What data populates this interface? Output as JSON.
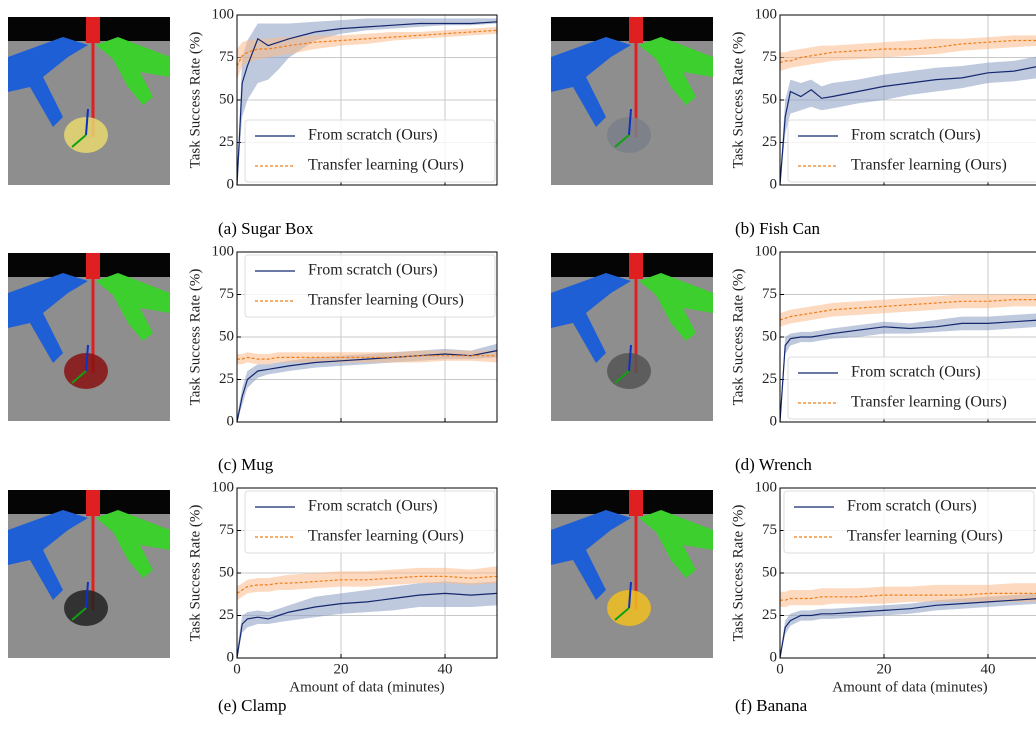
{
  "chart_data": [
    {
      "type": "line",
      "caption": "(a) Sugar Box",
      "ylabel": "Task Success Rate (%)",
      "xlim": [
        0,
        50
      ],
      "ylim": [
        0,
        100
      ],
      "xticks": [
        0,
        20,
        40
      ],
      "yticks": [
        0,
        25,
        50,
        75,
        100
      ],
      "xtick_labels": false,
      "grid": true,
      "legend": "lower right",
      "x": [
        0,
        1,
        2,
        4,
        6,
        8,
        10,
        15,
        20,
        25,
        30,
        35,
        40,
        45,
        50
      ],
      "series": [
        {
          "name": "From scratch (Ours)",
          "color": "#14286e",
          "band_color": "#8b9dc3",
          "values": [
            0,
            60,
            70,
            86,
            82,
            84,
            86,
            90,
            92,
            93,
            94,
            95,
            95,
            95,
            96
          ],
          "lower": [
            0,
            40,
            50,
            60,
            62,
            68,
            75,
            85,
            89,
            91,
            92,
            93,
            94,
            94,
            95
          ],
          "upper": [
            5,
            75,
            85,
            95,
            95,
            95,
            95,
            96,
            97,
            98,
            98,
            98,
            98,
            98,
            98
          ]
        },
        {
          "name": "Transfer learning (Ours)",
          "color": "#f07f1a",
          "band_color": "#f9b98a",
          "dashed": true,
          "values": [
            70,
            76,
            78,
            80,
            80,
            81,
            82,
            84,
            85,
            86,
            87,
            88,
            89,
            90,
            91
          ],
          "lower": [
            62,
            70,
            72,
            74,
            75,
            76,
            77,
            80,
            82,
            83,
            85,
            86,
            87,
            88,
            89
          ],
          "upper": [
            80,
            84,
            85,
            86,
            86,
            87,
            87,
            88,
            88,
            89,
            90,
            90,
            91,
            92,
            93
          ]
        }
      ]
    },
    {
      "type": "line",
      "caption": "(b) Fish Can",
      "ylabel": "Task Success Rate (%)",
      "xlim": [
        0,
        50
      ],
      "ylim": [
        0,
        100
      ],
      "xticks": [
        0,
        20,
        40
      ],
      "yticks": [
        0,
        25,
        50,
        75,
        100
      ],
      "xtick_labels": false,
      "grid": true,
      "legend": "lower right",
      "x": [
        0,
        1,
        2,
        4,
        6,
        8,
        10,
        15,
        20,
        25,
        30,
        35,
        40,
        45,
        50
      ],
      "series": [
        {
          "name": "From scratch (Ours)",
          "color": "#14286e",
          "band_color": "#8b9dc3",
          "values": [
            0,
            40,
            55,
            52,
            56,
            51,
            52,
            55,
            58,
            60,
            62,
            63,
            66,
            67,
            70
          ],
          "lower": [
            0,
            30,
            42,
            44,
            46,
            44,
            45,
            48,
            50,
            53,
            55,
            57,
            60,
            61,
            63
          ],
          "upper": [
            5,
            50,
            62,
            60,
            62,
            58,
            60,
            62,
            65,
            67,
            69,
            70,
            72,
            73,
            76
          ]
        },
        {
          "name": "Transfer learning (Ours)",
          "color": "#f07f1a",
          "band_color": "#f9b98a",
          "dashed": true,
          "values": [
            72,
            73,
            73,
            75,
            76,
            77,
            78,
            79,
            80,
            80,
            81,
            83,
            84,
            85,
            85
          ],
          "lower": [
            67,
            68,
            69,
            70,
            71,
            72,
            73,
            74,
            75,
            76,
            77,
            79,
            80,
            81,
            82
          ],
          "upper": [
            78,
            78,
            79,
            80,
            81,
            82,
            82,
            83,
            84,
            85,
            86,
            86,
            87,
            88,
            88
          ]
        }
      ]
    },
    {
      "type": "line",
      "caption": "(c) Mug",
      "ylabel": "Task Success Rate (%)",
      "xlim": [
        0,
        50
      ],
      "ylim": [
        0,
        100
      ],
      "xticks": [
        0,
        20,
        40
      ],
      "yticks": [
        0,
        25,
        50,
        75,
        100
      ],
      "xtick_labels": false,
      "grid": true,
      "legend": "upper right",
      "x": [
        0,
        1,
        2,
        4,
        6,
        8,
        10,
        15,
        20,
        25,
        30,
        35,
        40,
        45,
        50
      ],
      "series": [
        {
          "name": "From scratch (Ours)",
          "color": "#14286e",
          "band_color": "#8b9dc3",
          "values": [
            0,
            15,
            25,
            30,
            31,
            32,
            33,
            35,
            36,
            37,
            38,
            39,
            40,
            39,
            42
          ],
          "lower": [
            0,
            10,
            20,
            26,
            28,
            29,
            30,
            32,
            33,
            34,
            35,
            36,
            37,
            37,
            38
          ],
          "upper": [
            3,
            20,
            30,
            34,
            34,
            35,
            36,
            38,
            39,
            40,
            41,
            42,
            43,
            42,
            46
          ]
        },
        {
          "name": "Transfer learning (Ours)",
          "color": "#f07f1a",
          "band_color": "#f9b98a",
          "dashed": true,
          "values": [
            37,
            37,
            38,
            37,
            37,
            38,
            38,
            38,
            38,
            38,
            38,
            39,
            39,
            39,
            39
          ],
          "lower": [
            34,
            34,
            35,
            34,
            34,
            35,
            35,
            35,
            35,
            35,
            35,
            35,
            36,
            36,
            35
          ],
          "upper": [
            40,
            40,
            41,
            40,
            40,
            41,
            41,
            41,
            41,
            41,
            41,
            42,
            42,
            42,
            42
          ]
        }
      ]
    },
    {
      "type": "line",
      "caption": "(d) Wrench",
      "ylabel": "Task Success Rate (%)",
      "xlim": [
        0,
        50
      ],
      "ylim": [
        0,
        100
      ],
      "xticks": [
        0,
        20,
        40
      ],
      "yticks": [
        0,
        25,
        50,
        75,
        100
      ],
      "xtick_labels": false,
      "grid": true,
      "legend": "lower right",
      "x": [
        0,
        1,
        2,
        4,
        6,
        8,
        10,
        15,
        20,
        25,
        30,
        35,
        40,
        45,
        50
      ],
      "series": [
        {
          "name": "From scratch (Ours)",
          "color": "#14286e",
          "band_color": "#8b9dc3",
          "values": [
            0,
            45,
            49,
            50,
            50,
            51,
            52,
            54,
            56,
            55,
            56,
            58,
            58,
            59,
            60
          ],
          "lower": [
            0,
            40,
            45,
            47,
            47,
            48,
            49,
            50,
            52,
            52,
            53,
            54,
            54,
            55,
            56
          ],
          "upper": [
            5,
            50,
            52,
            53,
            53,
            54,
            55,
            57,
            59,
            58,
            60,
            62,
            62,
            63,
            64
          ]
        },
        {
          "name": "Transfer learning (Ours)",
          "color": "#f07f1a",
          "band_color": "#f9b98a",
          "dashed": true,
          "values": [
            60,
            61,
            62,
            63,
            64,
            65,
            66,
            67,
            68,
            69,
            70,
            71,
            71,
            72,
            72
          ],
          "lower": [
            56,
            57,
            58,
            59,
            60,
            61,
            62,
            63,
            64,
            65,
            66,
            67,
            67,
            68,
            68
          ],
          "upper": [
            64,
            65,
            66,
            67,
            68,
            69,
            70,
            71,
            72,
            73,
            74,
            75,
            75,
            75,
            75
          ]
        }
      ]
    },
    {
      "type": "line",
      "caption": "(e) Clamp",
      "ylabel": "Task Success Rate (%)",
      "xlabel": "Amount of data (minutes)",
      "xlim": [
        0,
        50
      ],
      "ylim": [
        0,
        100
      ],
      "xticks": [
        0,
        20,
        40
      ],
      "yticks": [
        0,
        25,
        50,
        75,
        100
      ],
      "xtick_labels": true,
      "grid": true,
      "legend": "upper right",
      "x": [
        0,
        1,
        2,
        4,
        6,
        8,
        10,
        15,
        20,
        25,
        30,
        35,
        40,
        45,
        50
      ],
      "series": [
        {
          "name": "From scratch (Ours)",
          "color": "#14286e",
          "band_color": "#8b9dc3",
          "values": [
            0,
            20,
            23,
            24,
            23,
            25,
            27,
            30,
            32,
            33,
            35,
            37,
            38,
            37,
            38
          ],
          "lower": [
            0,
            15,
            18,
            20,
            20,
            21,
            22,
            24,
            26,
            27,
            28,
            30,
            30,
            30,
            31
          ],
          "upper": [
            5,
            25,
            27,
            28,
            27,
            29,
            31,
            36,
            38,
            40,
            42,
            44,
            45,
            44,
            45
          ]
        },
        {
          "name": "Transfer learning (Ours)",
          "color": "#f07f1a",
          "band_color": "#f9b98a",
          "dashed": true,
          "values": [
            38,
            40,
            42,
            43,
            43,
            44,
            44,
            45,
            46,
            46,
            47,
            48,
            48,
            47,
            48
          ],
          "lower": [
            34,
            36,
            38,
            39,
            39,
            40,
            40,
            41,
            42,
            42,
            43,
            44,
            44,
            43,
            44
          ],
          "upper": [
            42,
            44,
            46,
            47,
            47,
            48,
            49,
            50,
            51,
            51,
            52,
            53,
            53,
            52,
            54
          ]
        }
      ]
    },
    {
      "type": "line",
      "caption": "(f) Banana",
      "ylabel": "Task Success Rate (%)",
      "xlabel": "Amount of data (minutes)",
      "xlim": [
        0,
        50
      ],
      "ylim": [
        0,
        100
      ],
      "xticks": [
        0,
        20,
        40
      ],
      "yticks": [
        0,
        25,
        50,
        75,
        100
      ],
      "xtick_labels": true,
      "grid": true,
      "legend": "upper left",
      "x": [
        0,
        1,
        2,
        4,
        6,
        8,
        10,
        15,
        20,
        25,
        30,
        35,
        40,
        45,
        50
      ],
      "series": [
        {
          "name": "From scratch (Ours)",
          "color": "#14286e",
          "band_color": "#8b9dc3",
          "values": [
            0,
            18,
            22,
            25,
            25,
            26,
            26,
            27,
            28,
            29,
            31,
            32,
            33,
            34,
            35
          ],
          "lower": [
            0,
            14,
            19,
            22,
            22,
            23,
            23,
            24,
            25,
            26,
            28,
            29,
            30,
            31,
            32
          ],
          "upper": [
            3,
            22,
            26,
            28,
            28,
            29,
            29,
            30,
            31,
            32,
            34,
            35,
            36,
            37,
            38
          ]
        },
        {
          "name": "Transfer learning (Ours)",
          "color": "#f07f1a",
          "band_color": "#f9b98a",
          "dashed": true,
          "values": [
            34,
            34,
            35,
            35,
            35,
            36,
            36,
            36,
            37,
            37,
            37,
            37,
            38,
            38,
            38
          ],
          "lower": [
            30,
            30,
            31,
            31,
            31,
            31,
            32,
            32,
            32,
            33,
            33,
            33,
            33,
            33,
            33
          ],
          "upper": [
            39,
            39,
            40,
            40,
            40,
            41,
            41,
            41,
            42,
            42,
            43,
            43,
            43,
            44,
            44
          ]
        }
      ]
    }
  ]
}
